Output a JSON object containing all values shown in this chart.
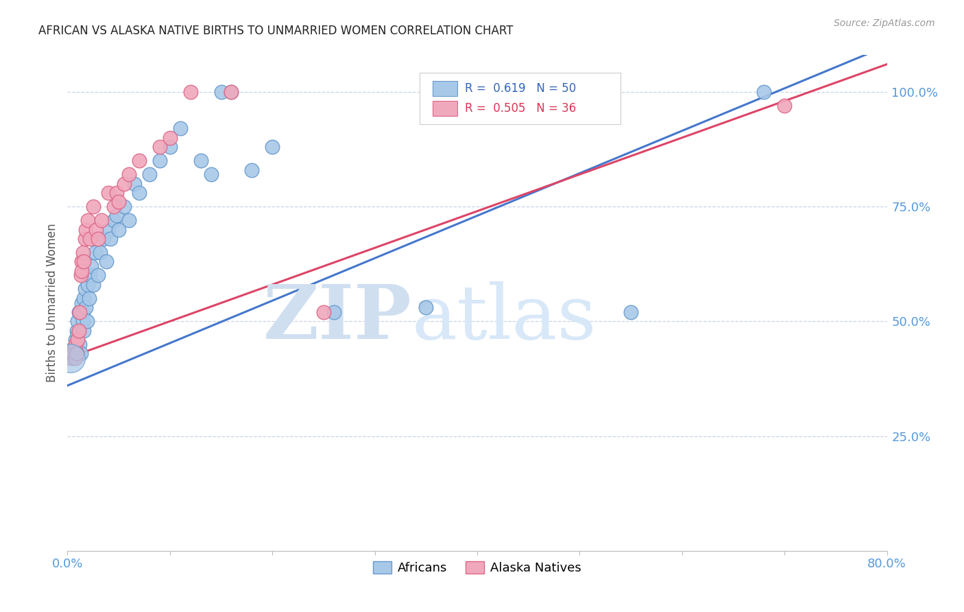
{
  "title": "AFRICAN VS ALASKA NATIVE BIRTHS TO UNMARRIED WOMEN CORRELATION CHART",
  "source": "Source: ZipAtlas.com",
  "ylabel": "Births to Unmarried Women",
  "xmin": 0.0,
  "xmax": 0.8,
  "ymin": 0.0,
  "ymax": 1.08,
  "ytick_right": [
    0.25,
    0.5,
    0.75,
    1.0
  ],
  "ytick_right_labels": [
    "25.0%",
    "50.0%",
    "75.0%",
    "100.0%"
  ],
  "grid_color": "#c8d4e8",
  "blue_color": "#a8c8e8",
  "pink_color": "#f0a8bc",
  "blue_edge": "#6699cc",
  "pink_edge": "#dd6688",
  "blue_line_color": "#4477cc",
  "pink_line_color": "#dd4466",
  "label_africans": "Africans",
  "label_alaska": "Alaska Natives",
  "watermark_color": "#d0dff0",
  "title_color": "#222222",
  "right_label_color": "#5599dd",
  "xtick_color": "#5599dd",
  "blue_legend_color": "#3366bb",
  "pink_legend_color": "#dd3355",
  "africans_x": [
    0.005,
    0.005,
    0.008,
    0.009,
    0.01,
    0.01,
    0.011,
    0.012,
    0.013,
    0.014,
    0.015,
    0.015,
    0.016,
    0.016,
    0.017,
    0.018,
    0.019,
    0.02,
    0.021,
    0.022,
    0.023,
    0.025,
    0.027,
    0.03,
    0.032,
    0.035,
    0.038,
    0.04,
    0.042,
    0.045,
    0.048,
    0.05,
    0.055,
    0.06,
    0.065,
    0.07,
    0.08,
    0.09,
    0.1,
    0.11,
    0.13,
    0.14,
    0.15,
    0.16,
    0.18,
    0.2,
    0.26,
    0.35,
    0.55,
    0.68
  ],
  "africans_y": [
    0.42,
    0.44,
    0.46,
    0.48,
    0.47,
    0.5,
    0.52,
    0.45,
    0.43,
    0.54,
    0.5,
    0.52,
    0.55,
    0.48,
    0.57,
    0.53,
    0.5,
    0.58,
    0.55,
    0.6,
    0.62,
    0.58,
    0.65,
    0.6,
    0.65,
    0.68,
    0.63,
    0.7,
    0.68,
    0.72,
    0.73,
    0.7,
    0.75,
    0.72,
    0.8,
    0.78,
    0.82,
    0.85,
    0.88,
    0.92,
    0.85,
    0.82,
    1.0,
    1.0,
    0.83,
    0.88,
    0.52,
    0.53,
    0.52,
    1.0
  ],
  "alaska_x": [
    0.004,
    0.005,
    0.006,
    0.007,
    0.008,
    0.008,
    0.009,
    0.01,
    0.011,
    0.012,
    0.013,
    0.014,
    0.014,
    0.015,
    0.016,
    0.017,
    0.018,
    0.02,
    0.022,
    0.025,
    0.028,
    0.03,
    0.033,
    0.04,
    0.045,
    0.048,
    0.05,
    0.055,
    0.06,
    0.07,
    0.09,
    0.1,
    0.12,
    0.16,
    0.25,
    0.7
  ],
  "alaska_y": [
    0.42,
    0.43,
    0.43,
    0.44,
    0.45,
    0.42,
    0.43,
    0.46,
    0.48,
    0.52,
    0.6,
    0.63,
    0.61,
    0.65,
    0.63,
    0.68,
    0.7,
    0.72,
    0.68,
    0.75,
    0.7,
    0.68,
    0.72,
    0.78,
    0.75,
    0.78,
    0.76,
    0.8,
    0.82,
    0.85,
    0.88,
    0.9,
    1.0,
    1.0,
    0.52,
    0.97
  ],
  "blue_line_x0": 0.0,
  "blue_line_y0": 0.36,
  "blue_line_x1": 0.8,
  "blue_line_y1": 1.1,
  "pink_line_x0": 0.0,
  "pink_line_y0": 0.42,
  "pink_line_x1": 0.8,
  "pink_line_y1": 1.06
}
